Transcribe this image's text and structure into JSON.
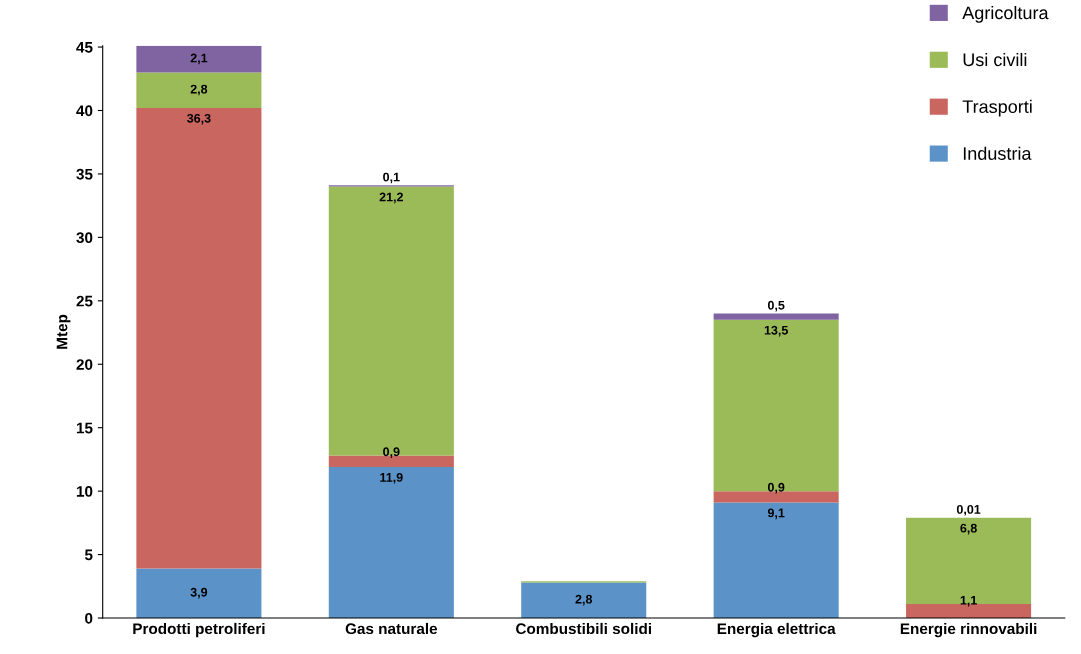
{
  "chart_data": {
    "type": "bar",
    "stacked": true,
    "ylabel": "Mtep",
    "categories": [
      "Prodotti petroliferi",
      "Gas naturale",
      "Combustibili solidi",
      "Energia elettrica",
      "Energie rinnovabili"
    ],
    "series": [
      {
        "name": "Industria",
        "color": "#5b93c9",
        "values": [
          3.9,
          11.9,
          2.8,
          9.1,
          null
        ],
        "value_labels": [
          "3,9",
          "11,9",
          "2,8",
          "9,1",
          null
        ]
      },
      {
        "name": "Trasporti",
        "color": "#c9665f",
        "values": [
          36.3,
          0.9,
          null,
          0.9,
          1.1
        ],
        "value_labels": [
          "36,3",
          "0,9",
          null,
          "0,9",
          "1,1"
        ]
      },
      {
        "name": "Usi civili",
        "color": "#9bbb59",
        "values": [
          2.8,
          21.2,
          0.1,
          13.5,
          6.8
        ],
        "value_labels": [
          "2,8",
          "21,2",
          null,
          "13,5",
          "6,8"
        ]
      },
      {
        "name": "Agricoltura",
        "color": "#8064a2",
        "values": [
          2.1,
          0.1,
          null,
          0.5,
          0.01
        ],
        "value_labels": [
          "2,1",
          "0,1",
          null,
          "0,5",
          "0,01"
        ]
      }
    ],
    "ylim": [
      0,
      45.1
    ],
    "yticks": [
      0,
      5,
      10,
      15,
      20,
      25,
      30,
      35,
      40,
      45
    ],
    "grid": false,
    "legend": "top right"
  }
}
